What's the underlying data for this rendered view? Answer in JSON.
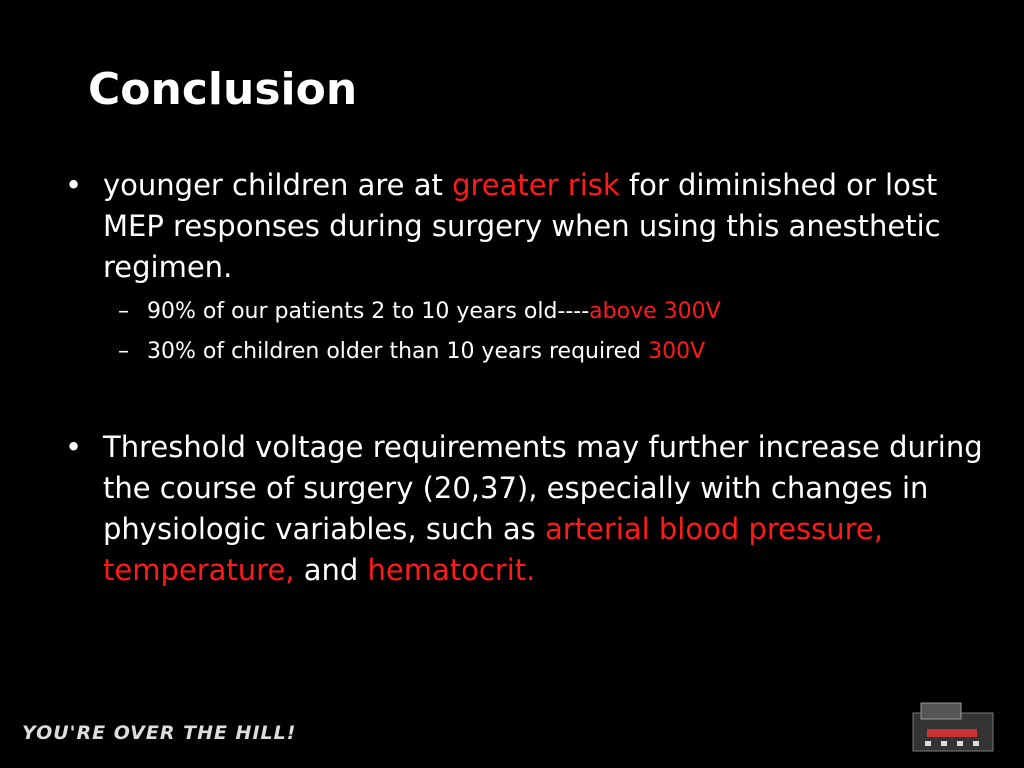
{
  "title": "Conclusion",
  "bullets": [
    {
      "parts": [
        "younger children are at ",
        "greater risk",
        " for diminished or lost MEP responses during surgery when using this anesthetic regimen."
      ],
      "subbullets": [
        {
          "parts": [
            "90% of our patients 2 to 10 years old----",
            "above 300V"
          ]
        },
        {
          "parts": [
            "30% of children older than 10 years required ",
            "300V"
          ]
        }
      ]
    },
    {
      "parts": [
        "Threshold voltage requirements may further increase during the course of surgery (20,37), especially with changes in physiologic variables, such as ",
        "arterial blood pressure, temperature,",
        " and ",
        "hematocrit."
      ]
    }
  ],
  "footer": {
    "logo": "YOU'RE OVER THE HILL!"
  }
}
